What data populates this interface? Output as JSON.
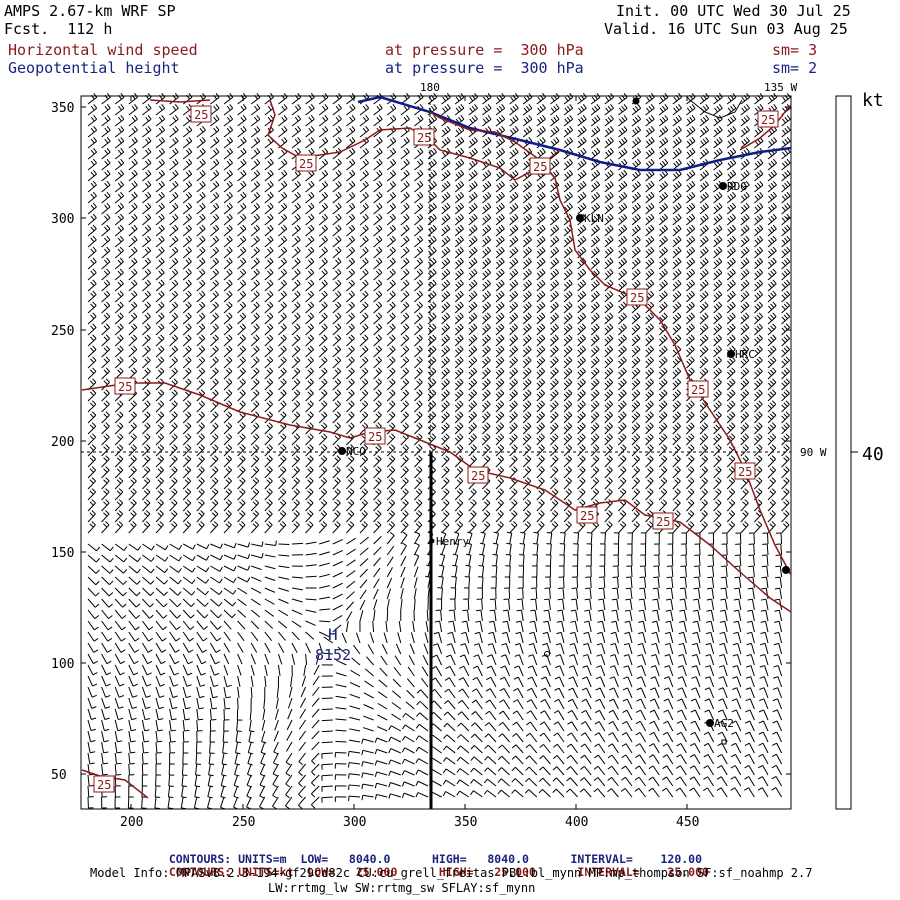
{
  "header": {
    "title": "AMPS 2.67-km WRF SP",
    "forecast": "Fcst.  112 h",
    "init": "Init. 00 UTC Wed 30 Jul 25",
    "valid": "Valid. 16 UTC Sun 03 Aug 25",
    "field1_name": "Horizontal wind speed",
    "field1_level": "at pressure =  300 hPa",
    "field1_sm": "sm= 3",
    "field2_name": "Geopotential height",
    "field2_level": "at pressure =  300 hPa",
    "field2_sm": "sm= 2"
  },
  "map": {
    "x_ticks": [
      "200",
      "250",
      "300",
      "350",
      "400",
      "450"
    ],
    "y_ticks": [
      "350",
      "300",
      "250",
      "200",
      "150",
      "100",
      "50"
    ],
    "lon_labels": {
      "top_180": "180",
      "top_135w": "135 W",
      "right_90w": "90 W"
    },
    "contour_label": "25",
    "stations": [
      "RDG",
      "KLN",
      "HRC",
      "NCO",
      "Henry",
      "AG2"
    ],
    "high_label": "H",
    "high_value": "8152",
    "colors": {
      "wind_contour": "#8b1a1a",
      "height_contour": "#0d1e8c",
      "barb": "#000000"
    }
  },
  "colorbar": {
    "unit": "kt",
    "value": "40"
  },
  "footer": {
    "row1": {
      "contours": "CONTOURS:",
      "units": "UNITS=m",
      "low": "LOW=   8040.0",
      "high": "HIGH=   8040.0",
      "interval": "INTERVAL=    120.00"
    },
    "row2": {
      "contours": "CONTOURS:",
      "units": "UNITS=kt",
      "low": "LOW=   25.000",
      "high": "HIGH=   25.000",
      "interval": "INTERVAL=    25.000"
    },
    "model_info1": "Model Info: MPASv8.2.3-194-gf29cd82c CU:cu_grell_freitas PBL:bl_mynn MP:mp_thompson SF:sf_noahmp 2.7",
    "model_info2": "LW:rrtmg_lw SW:rrtmg_sw SFLAY:sf_mynn"
  }
}
